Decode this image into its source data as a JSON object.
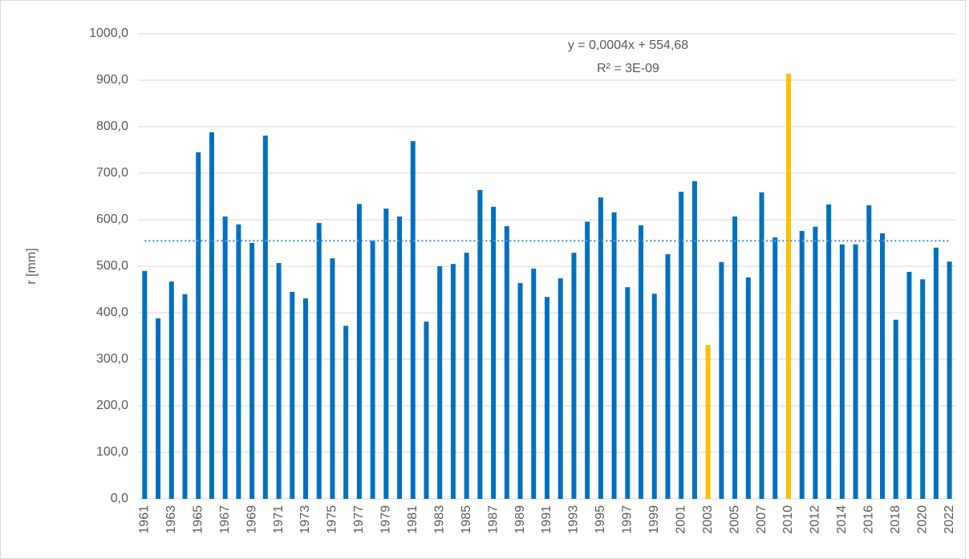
{
  "chart_data": {
    "type": "bar",
    "y_label": "r [mm]",
    "categories": [
      "1961",
      null,
      "1963",
      null,
      "1965",
      null,
      "1967",
      null,
      "1969",
      null,
      "1971",
      null,
      "1973",
      null,
      "1975",
      null,
      "1977",
      null,
      "1979",
      null,
      "1981",
      null,
      "1983",
      null,
      "1985",
      null,
      "1987",
      null,
      "1989",
      null,
      "1991",
      null,
      "1993",
      null,
      "1995",
      null,
      "1997",
      null,
      "1999",
      null,
      "2001",
      null,
      "2003",
      null,
      "2005",
      null,
      "2007",
      null,
      "2010",
      null,
      "2012",
      null,
      "2014",
      null,
      "2016",
      null,
      "2018",
      null,
      "2020",
      null,
      "2022"
    ],
    "values": [
      490,
      388,
      467,
      440,
      745,
      788,
      607,
      590,
      550,
      781,
      507,
      445,
      431,
      593,
      517,
      372,
      634,
      555,
      624,
      607,
      769,
      381,
      500,
      505,
      529,
      664,
      628,
      586,
      464,
      495,
      434,
      474,
      529,
      596,
      648,
      616,
      455,
      588,
      441,
      526,
      660,
      683,
      331,
      509,
      607,
      476,
      659,
      562,
      914,
      576,
      585,
      633,
      547,
      547,
      631,
      571,
      385,
      488,
      472,
      540,
      510
    ],
    "color": "#0070c0",
    "highlight_color": "#ffc000",
    "highlight": [
      42,
      48
    ],
    "ylim": [
      0,
      1000
    ],
    "yticks": [
      {
        "value": 0,
        "label": "0,0"
      },
      {
        "value": 100,
        "label": "100,0"
      },
      {
        "value": 200,
        "label": "200,0"
      },
      {
        "value": 300,
        "label": "300,0"
      },
      {
        "value": 400,
        "label": "400,0"
      },
      {
        "value": 500,
        "label": "500,0"
      },
      {
        "value": 600,
        "label": "600,0"
      },
      {
        "value": 700,
        "label": "700,0"
      },
      {
        "value": 800,
        "label": "800,0"
      },
      {
        "value": 900,
        "label": "900,0"
      },
      {
        "value": 1000,
        "label": "1000,0"
      }
    ],
    "grid": true,
    "trendline": {
      "slope": 0.0004,
      "intercept": 554.68,
      "color": "#5b9bd5",
      "equation": "y = 0,0004x + 554,68",
      "r_squared": "R² = 3E-09"
    }
  }
}
